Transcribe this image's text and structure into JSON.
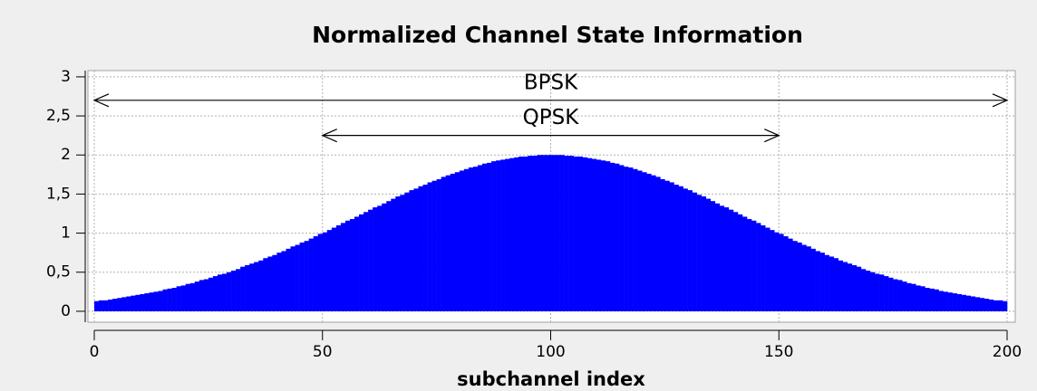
{
  "chart_data": {
    "type": "histogram",
    "title": "Normalized Channel State Information",
    "x_label": "subchannel index",
    "color": "#0000ff",
    "grid": true,
    "bins": [
      0,
      1,
      2,
      3,
      4,
      5,
      6,
      7,
      8,
      9,
      10,
      11,
      12,
      13,
      14,
      15,
      16,
      17,
      18,
      19,
      20,
      21,
      22,
      23,
      24,
      25,
      26,
      27,
      28,
      29,
      30,
      31,
      32,
      33,
      34,
      35,
      36,
      37,
      38,
      39,
      40,
      41,
      42,
      43,
      44,
      45,
      46,
      47,
      48,
      49,
      50,
      51,
      52,
      53,
      54,
      55,
      56,
      57,
      58,
      59,
      60,
      61,
      62,
      63,
      64,
      65,
      66,
      67,
      68,
      69,
      70,
      71,
      72,
      73,
      74,
      75,
      76,
      77,
      78,
      79,
      80,
      81,
      82,
      83,
      84,
      85,
      86,
      87,
      88,
      89,
      90,
      91,
      92,
      93,
      94,
      95,
      96,
      97,
      98,
      99,
      100,
      101,
      102,
      103,
      104,
      105,
      106,
      107,
      108,
      109,
      110,
      111,
      112,
      113,
      114,
      115,
      116,
      117,
      118,
      119,
      120,
      121,
      122,
      123,
      124,
      125,
      126,
      127,
      128,
      129,
      130,
      131,
      132,
      133,
      134,
      135,
      136,
      137,
      138,
      139,
      140,
      141,
      142,
      143,
      144,
      145,
      146,
      147,
      148,
      149,
      150,
      151,
      152,
      153,
      154,
      155,
      156,
      157,
      158,
      159,
      160,
      161,
      162,
      163,
      164,
      165,
      166,
      167,
      168,
      169,
      170,
      171,
      172,
      173,
      174,
      175,
      176,
      177,
      178,
      179,
      180,
      181,
      182,
      183,
      184,
      185,
      186,
      187,
      188,
      189,
      190,
      191,
      192,
      193,
      194,
      195,
      196,
      197,
      198,
      199,
      200
    ],
    "values": [
      0.13,
      0.14,
      0.14,
      0.15,
      0.16,
      0.17,
      0.18,
      0.19,
      0.2,
      0.21,
      0.22,
      0.23,
      0.24,
      0.25,
      0.26,
      0.28,
      0.29,
      0.3,
      0.32,
      0.33,
      0.35,
      0.36,
      0.38,
      0.4,
      0.41,
      0.43,
      0.45,
      0.47,
      0.48,
      0.5,
      0.52,
      0.54,
      0.57,
      0.59,
      0.61,
      0.63,
      0.65,
      0.68,
      0.7,
      0.72,
      0.75,
      0.77,
      0.8,
      0.83,
      0.85,
      0.88,
      0.9,
      0.93,
      0.96,
      0.99,
      1.01,
      1.04,
      1.07,
      1.1,
      1.13,
      1.16,
      1.18,
      1.21,
      1.24,
      1.27,
      1.3,
      1.33,
      1.35,
      1.38,
      1.41,
      1.44,
      1.47,
      1.49,
      1.52,
      1.55,
      1.57,
      1.6,
      1.62,
      1.65,
      1.67,
      1.69,
      1.72,
      1.74,
      1.76,
      1.78,
      1.8,
      1.82,
      1.84,
      1.85,
      1.87,
      1.89,
      1.9,
      1.92,
      1.93,
      1.94,
      1.95,
      1.96,
      1.97,
      1.98,
      1.98,
      1.99,
      1.99,
      2.0,
      2.0,
      2.0,
      2.0,
      2.0,
      2.0,
      1.99,
      1.99,
      1.98,
      1.98,
      1.97,
      1.96,
      1.95,
      1.94,
      1.93,
      1.92,
      1.9,
      1.89,
      1.87,
      1.85,
      1.84,
      1.82,
      1.8,
      1.78,
      1.76,
      1.74,
      1.72,
      1.69,
      1.67,
      1.65,
      1.62,
      1.6,
      1.57,
      1.55,
      1.52,
      1.49,
      1.47,
      1.44,
      1.41,
      1.38,
      1.35,
      1.33,
      1.3,
      1.27,
      1.24,
      1.21,
      1.18,
      1.16,
      1.13,
      1.1,
      1.07,
      1.04,
      1.01,
      0.99,
      0.96,
      0.93,
      0.9,
      0.88,
      0.85,
      0.83,
      0.8,
      0.77,
      0.75,
      0.72,
      0.7,
      0.68,
      0.65,
      0.63,
      0.61,
      0.59,
      0.57,
      0.54,
      0.52,
      0.5,
      0.48,
      0.47,
      0.45,
      0.43,
      0.41,
      0.4,
      0.38,
      0.36,
      0.35,
      0.33,
      0.32,
      0.3,
      0.29,
      0.28,
      0.26,
      0.25,
      0.24,
      0.23,
      0.22,
      0.21,
      0.2,
      0.19,
      0.18,
      0.17,
      0.16,
      0.15,
      0.14,
      0.14,
      0.13
    ],
    "xlim": [
      0,
      200
    ],
    "xticks": [
      0,
      50,
      100,
      150,
      200
    ],
    "ylim": [
      -0.14,
      3.08
    ],
    "yticks": [
      0,
      {
        "value": 0.5,
        "label": "0,5"
      },
      1,
      {
        "value": 1.5,
        "label": "1,5"
      },
      2,
      {
        "value": 2.5,
        "label": "2,5"
      },
      3
    ],
    "annotations": [
      {
        "text": "BPSK",
        "x": [
          0,
          200
        ],
        "y": 2.7
      },
      {
        "text": "QPSK",
        "x": [
          50,
          150
        ],
        "y": 2.25
      }
    ]
  }
}
